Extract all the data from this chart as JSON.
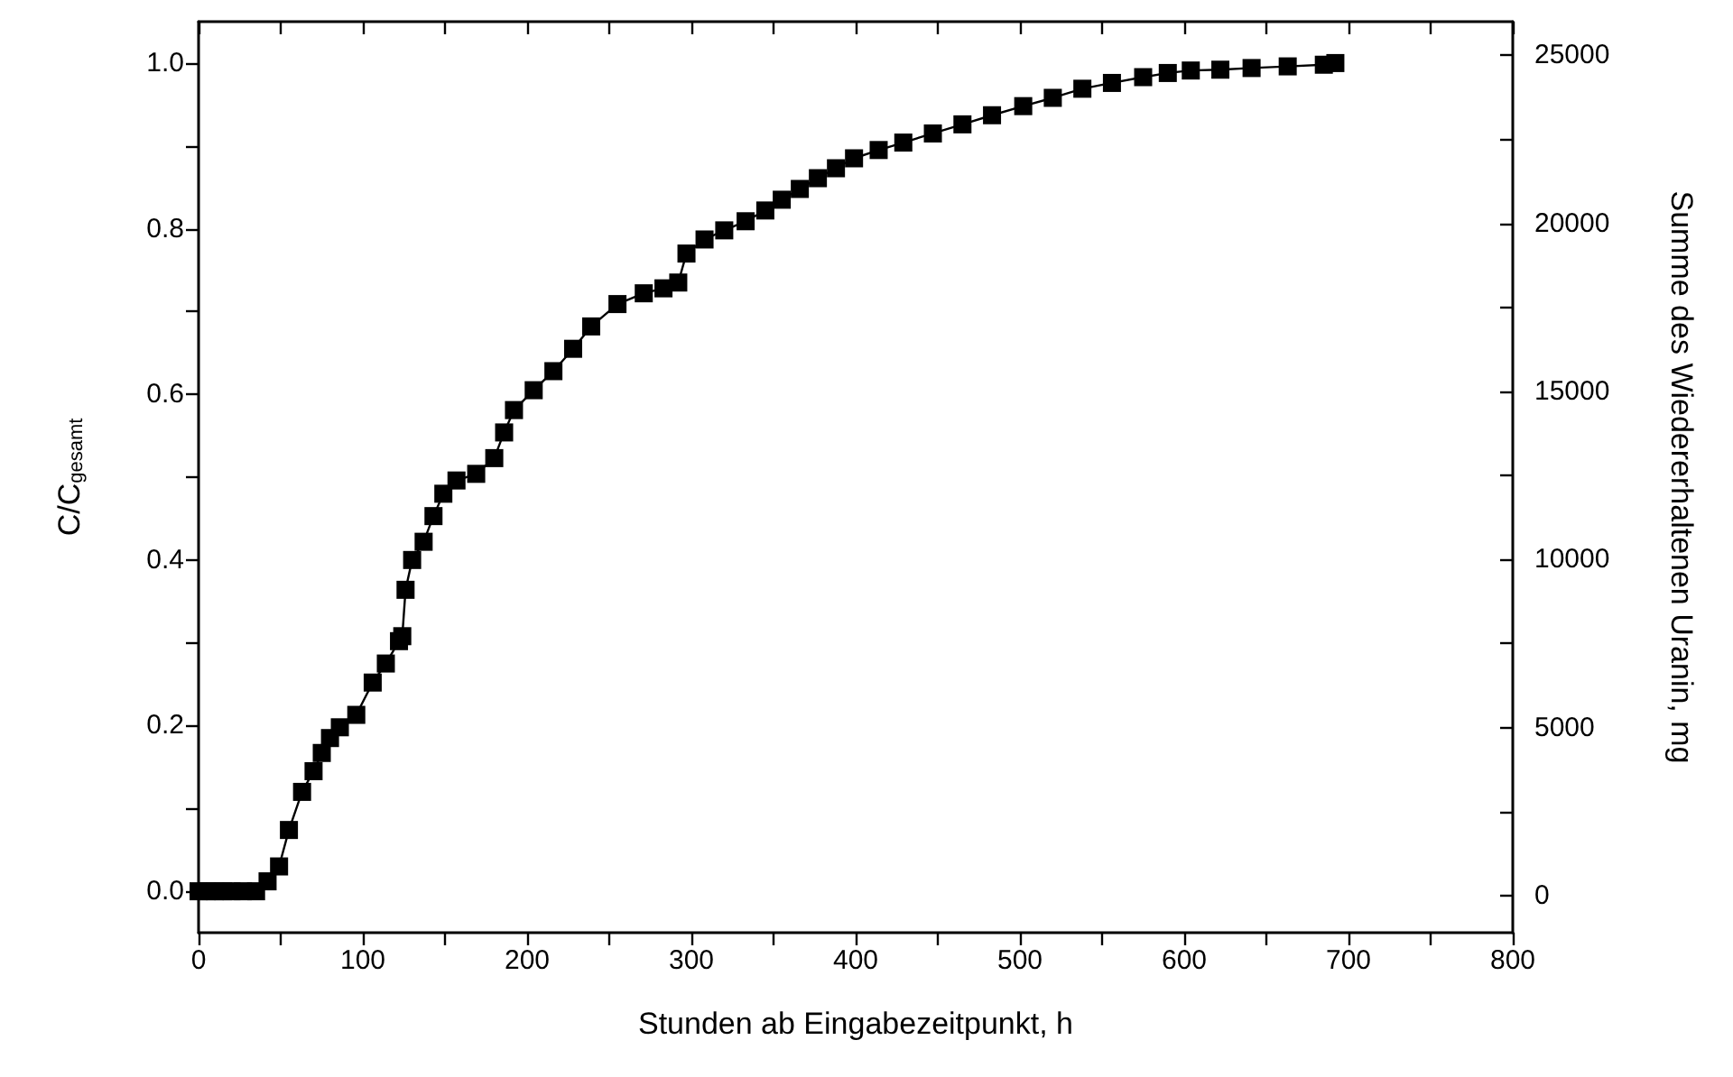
{
  "chart_data": {
    "type": "line",
    "xlabel": "Stunden ab Eingabezeitpunkt, h",
    "ylabel": "C/C$_{gesamt}$",
    "y2label": "Summe des Wiedererhaltenen Uranin, mg",
    "x": [
      0,
      5,
      10,
      15,
      20,
      27,
      35,
      42,
      49,
      55,
      63,
      70,
      75,
      80,
      86,
      96,
      106,
      114,
      122,
      124,
      126,
      130,
      137,
      143,
      149,
      157,
      169,
      180,
      186,
      192,
      204,
      216,
      228,
      239,
      255,
      271,
      283,
      292,
      297,
      308,
      320,
      333,
      345,
      355,
      366,
      377,
      388,
      399,
      414,
      429,
      447,
      465,
      483,
      502,
      520,
      538,
      556,
      575,
      590,
      604,
      622,
      641,
      663,
      685,
      692
    ],
    "series": [
      {
        "color": "#000000",
        "values": [
          0,
          0,
          0,
          0,
          0,
          0,
          0,
          0.012,
          0.03,
          0.074,
          0.12,
          0.145,
          0.167,
          0.185,
          0.198,
          0.213,
          0.252,
          0.275,
          0.302,
          0.308,
          0.364,
          0.4,
          0.422,
          0.453,
          0.48,
          0.496,
          0.504,
          0.523,
          0.554,
          0.581,
          0.605,
          0.628,
          0.655,
          0.682,
          0.709,
          0.722,
          0.728,
          0.735,
          0.77,
          0.787,
          0.798,
          0.809,
          0.822,
          0.835,
          0.848,
          0.861,
          0.873,
          0.885,
          0.895,
          0.904,
          0.915,
          0.926,
          0.937,
          0.948,
          0.958,
          0.969,
          0.976,
          0.983,
          0.988,
          0.991,
          0.992,
          0.994,
          0.996,
          0.998,
          1.0
        ]
      }
    ],
    "xlim": [
      0,
      800
    ],
    "xticks": [
      0,
      {
        "value": 50,
        "label": null
      },
      100,
      {
        "value": 150,
        "label": null
      },
      200,
      {
        "value": 250,
        "label": null
      },
      300,
      {
        "value": 350,
        "label": null
      },
      400,
      {
        "value": 450,
        "label": null
      },
      500,
      {
        "value": 550,
        "label": null
      },
      600,
      {
        "value": 650,
        "label": null
      },
      700,
      {
        "value": 750,
        "label": null
      },
      800
    ],
    "ylim": [
      -0.05,
      1.05
    ],
    "yticks": [
      {
        "value": 0,
        "label": "0.0"
      },
      {
        "value": 0.1,
        "label": null
      },
      {
        "value": 0.2,
        "label": "0.2"
      },
      {
        "value": 0.3,
        "label": null
      },
      {
        "value": 0.4,
        "label": "0.4"
      },
      {
        "value": 0.5,
        "label": null
      },
      {
        "value": 0.6,
        "label": "0.6"
      },
      {
        "value": 0.7,
        "label": null
      },
      {
        "value": 0.8,
        "label": "0.8"
      },
      {
        "value": 0.9,
        "label": null
      },
      {
        "value": 1.0,
        "label": "1.0"
      }
    ],
    "y2lim": [
      -1100,
      26000
    ],
    "y2ticks": [
      0,
      {
        "value": 2500,
        "label": null
      },
      5000,
      {
        "value": 7500,
        "label": null
      },
      10000,
      {
        "value": 12500,
        "label": null
      },
      15000,
      {
        "value": 17500,
        "label": null
      },
      20000,
      {
        "value": 22500,
        "label": null
      },
      25000
    ],
    "marker": "square",
    "line_style": "solid"
  }
}
